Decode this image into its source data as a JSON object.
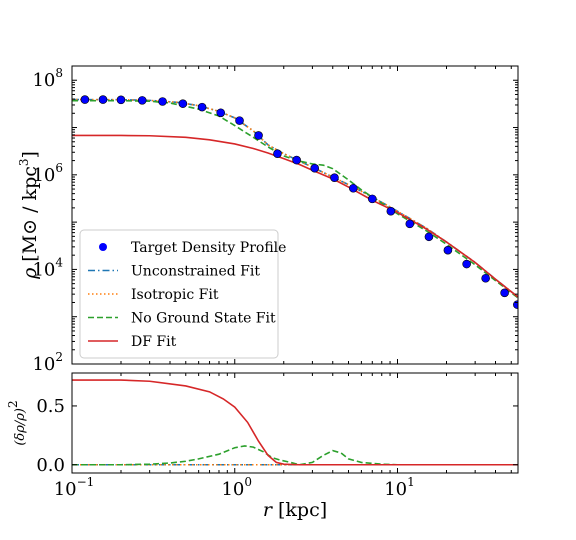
{
  "colors": {
    "target": "#0000ff",
    "unconstrained": "#1f77b4",
    "isotropic": "#ff7f0e",
    "no_ground_state": "#2ca02c",
    "df_fit": "#d62728",
    "reference": "#7f7f7f"
  },
  "chart_data": [
    {
      "type": "line",
      "panel": "density",
      "xscale": "log",
      "yscale": "log",
      "xlim": [
        0.1,
        55
      ],
      "ylim": [
        100,
        200000000
      ],
      "ylabel": "ρ [M⊙ / kpc3]",
      "yticks": [
        {
          "value": 100,
          "base": "10",
          "exp": "2"
        },
        {
          "value": 10000,
          "base": "10",
          "exp": "4"
        },
        {
          "value": 1000000,
          "base": "10",
          "exp": "6"
        },
        {
          "value": 100000000,
          "base": "10",
          "exp": "8"
        }
      ],
      "legend_position": "lower-left",
      "series": [
        {
          "name": "Target Density Profile",
          "style": "markers",
          "color_key": "target",
          "x": [
            0.12,
            0.155,
            0.2,
            0.27,
            0.36,
            0.48,
            0.63,
            0.82,
            1.07,
            1.4,
            1.83,
            2.4,
            3.1,
            4.1,
            5.35,
            7.0,
            9.1,
            11.9,
            15.6,
            20.4,
            26.6,
            34.8,
            45.5,
            54.5
          ],
          "y": [
            39000000,
            39000000,
            38500000,
            37500000,
            35500000,
            32000000,
            27000000,
            20500000,
            14000000,
            6800000,
            2800000,
            2050000,
            1380000,
            870000,
            520000,
            310000,
            170000,
            92000,
            49000,
            25500,
            13000,
            6500,
            3200,
            1800
          ]
        },
        {
          "name": "Unconstrained Fit",
          "style": "dashdot",
          "color_key": "unconstrained",
          "x": [
            0.1,
            0.2,
            0.3,
            0.45,
            0.6,
            0.8,
            1.0,
            1.3,
            1.6,
            2.0,
            2.5,
            3.0,
            4.0,
            5.0,
            7.0,
            10.0,
            15.0,
            20.0,
            30.0,
            40.0,
            55.0
          ],
          "y": [
            39000000,
            38800000,
            37500000,
            34000000,
            29000000,
            22000000,
            16000000,
            8500000,
            4300000,
            2800000,
            1950000,
            1450000,
            900000,
            620000,
            340000,
            170000,
            75000,
            38000,
            14000,
            6200,
            2600
          ]
        },
        {
          "name": "Isotropic Fit",
          "style": "dotted",
          "color_key": "isotropic",
          "x": [
            0.1,
            0.2,
            0.3,
            0.45,
            0.6,
            0.8,
            1.0,
            1.3,
            1.6,
            2.0,
            2.5,
            3.0,
            4.0,
            5.0,
            7.0,
            10.0,
            15.0,
            20.0,
            30.0,
            40.0,
            55.0
          ],
          "y": [
            39000000,
            38800000,
            37500000,
            34000000,
            29000000,
            22000000,
            16000000,
            8500000,
            4300000,
            2800000,
            1950000,
            1450000,
            900000,
            620000,
            340000,
            170000,
            75000,
            38000,
            14000,
            6200,
            2600
          ]
        },
        {
          "name": "No Ground State Fit",
          "style": "dashed",
          "color_key": "no_ground_state",
          "x": [
            0.1,
            0.2,
            0.3,
            0.4,
            0.5,
            0.6,
            0.8,
            1.0,
            1.3,
            1.6,
            2.0,
            2.5,
            3.0,
            3.5,
            4.0,
            5.0,
            6.0,
            8.0,
            10.0,
            15.0,
            20.0,
            30.0,
            40.0,
            55.0
          ],
          "y": [
            37000000,
            37000000,
            36000000,
            33000000,
            28000000,
            24500000,
            17500000,
            11000000,
            6200000,
            3900000,
            2500000,
            1950000,
            1700000,
            1600000,
            1350000,
            780000,
            480000,
            250000,
            150000,
            66000,
            34000,
            12500,
            5800,
            2500
          ]
        },
        {
          "name": "DF Fit",
          "style": "solid",
          "color_key": "df_fit",
          "x": [
            0.1,
            0.2,
            0.3,
            0.5,
            0.7,
            1.0,
            1.3,
            1.6,
            2.0,
            2.5,
            3.0,
            4.0,
            5.0,
            7.0,
            10.0,
            15.0,
            20.0,
            30.0,
            40.0,
            55.0
          ],
          "y": [
            6800000,
            6800000,
            6700000,
            6200000,
            5500000,
            4500000,
            3600000,
            2900000,
            2200000,
            1650000,
            1250000,
            820000,
            550000,
            290000,
            160000,
            72000,
            38000,
            14000,
            6200,
            2600
          ]
        }
      ]
    },
    {
      "type": "line",
      "panel": "residual",
      "xscale": "log",
      "yscale": "linear",
      "xlim": [
        0.1,
        55
      ],
      "ylim": [
        -0.07,
        0.78
      ],
      "xlabel": "r [kpc]",
      "ylabel": "(δρ/ρ)2",
      "xticks": [
        {
          "value": 0.1,
          "base": "10",
          "exp": "−1"
        },
        {
          "value": 1,
          "base": "10",
          "exp": "0"
        },
        {
          "value": 10,
          "base": "10",
          "exp": "1"
        }
      ],
      "yticks": [
        {
          "value": 0.0,
          "label": "0.0"
        },
        {
          "value": 0.5,
          "label": "0.5"
        }
      ],
      "series": [
        {
          "name": "Unconstrained Fit",
          "style": "dashdot",
          "color_key": "unconstrained",
          "x": [
            0.1,
            55
          ],
          "y": [
            0.0,
            0.0
          ]
        },
        {
          "name": "Isotropic Fit",
          "style": "dotted",
          "color_key": "isotropic",
          "x": [
            0.1,
            55
          ],
          "y": [
            0.0,
            0.0
          ]
        },
        {
          "name": "No Ground State Fit",
          "style": "dashed",
          "color_key": "no_ground_state",
          "x": [
            0.1,
            0.2,
            0.3,
            0.4,
            0.5,
            0.6,
            0.8,
            1.0,
            1.15,
            1.3,
            1.5,
            1.7,
            1.9,
            2.2,
            2.5,
            3.0,
            3.5,
            4.0,
            4.5,
            5.0,
            6.0,
            8.0,
            10.0,
            20.0,
            55.0
          ],
          "y": [
            0.0,
            0.0,
            0.005,
            0.015,
            0.03,
            0.05,
            0.09,
            0.145,
            0.16,
            0.15,
            0.11,
            0.06,
            0.04,
            0.02,
            0.0,
            0.02,
            0.08,
            0.12,
            0.1,
            0.05,
            0.02,
            0.005,
            0.0,
            0.0,
            0.0
          ]
        },
        {
          "name": "DF Fit",
          "style": "solid",
          "color_key": "df_fit",
          "x": [
            0.1,
            0.2,
            0.3,
            0.5,
            0.7,
            0.85,
            1.0,
            1.2,
            1.4,
            1.6,
            1.8,
            2.0,
            2.5,
            3.0,
            5.0,
            10.0,
            55.0
          ],
          "y": [
            0.72,
            0.72,
            0.71,
            0.67,
            0.62,
            0.56,
            0.49,
            0.36,
            0.2,
            0.08,
            0.02,
            0.005,
            0.0,
            0.0,
            0.0,
            0.0,
            0.0
          ]
        }
      ]
    }
  ]
}
